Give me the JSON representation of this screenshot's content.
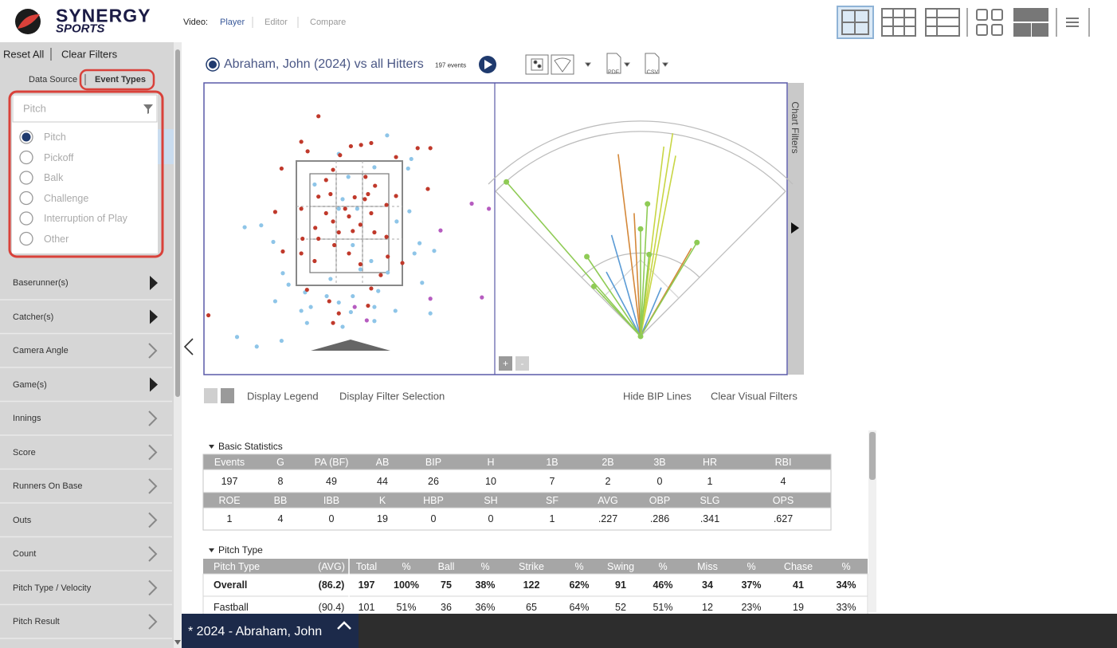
{
  "header": {
    "logo": "SYNERGY",
    "logo_sub": "SPORTS",
    "video_label": "Video:",
    "video_tabs": [
      "Player",
      "Editor",
      "Compare"
    ],
    "active_tab": 0
  },
  "sidebar": {
    "actions": [
      "Reset All",
      "Clear Filters"
    ],
    "tabs": [
      "Data Source",
      "Event Types"
    ],
    "active_tab": 1,
    "event_filter": {
      "placeholder": "Pitch",
      "options": [
        "Pitch",
        "Pickoff",
        "Balk",
        "Challenge",
        "Interruption of Play",
        "Other"
      ],
      "selected": 0
    },
    "filters": [
      {
        "label": "Baserunner(s)",
        "filled_arrow": true
      },
      {
        "label": "Catcher(s)",
        "filled_arrow": true
      },
      {
        "label": "Camera Angle",
        "filled_arrow": false
      },
      {
        "label": "Game(s)",
        "filled_arrow": true
      },
      {
        "label": "Innings",
        "filled_arrow": false
      },
      {
        "label": "Score",
        "filled_arrow": false
      },
      {
        "label": "Runners On Base",
        "filled_arrow": false
      },
      {
        "label": "Outs",
        "filled_arrow": false
      },
      {
        "label": "Count",
        "filled_arrow": false
      },
      {
        "label": "Pitch Type / Velocity",
        "filled_arrow": false
      },
      {
        "label": "Pitch Result",
        "filled_arrow": false
      }
    ]
  },
  "player": {
    "title": "Abraham, John (2024) vs all Hitters",
    "events": "197 events",
    "exports": [
      "PDF",
      "CSV"
    ]
  },
  "chart_panel": {
    "side_tab": "Chart Filters",
    "zoom": [
      "+",
      "-"
    ],
    "left_buttons": [
      "Display Legend",
      "Display Filter Selection"
    ],
    "right_buttons": [
      "Hide BIP Lines",
      "Clear Visual Filters"
    ]
  },
  "chart_data": [
    {
      "type": "scatter",
      "xlim": [
        -2.28,
        2.28
      ],
      "ylim": [
        0,
        4.56
      ],
      "series": [
        {
          "color": "#8ec5e8",
          "x": [
            0.6,
            -0.16,
            0.4,
            0.93,
            0.98,
            -0.01,
            -0.54,
            -0.1,
            0.95,
            -1.38,
            -1.64,
            -1.19,
            -0.16,
            0.13,
            0.75,
            0.06,
            1.11,
            1.34,
            1.03,
            0.35,
            0.18,
            0.61,
            -1.04,
            -0.95,
            -1.16,
            -0.69,
            0.06,
            -0.35,
            -0.16,
            -0.6,
            0.03,
            0.4,
            0.73,
            1.28,
            -0.75,
            0.4,
            -0.1,
            -0.66,
            -1.06,
            -1.45,
            -1.76,
            0.46,
            -0.29,
            1.15
          ],
          "values": [
            3.75,
            3.46,
            3.25,
            3.23,
            3.38,
            3.1,
            2.98,
            2.75,
            2.56,
            2.34,
            2.31,
            2.08,
            2.6,
            2.6,
            2.4,
            2.03,
            2.06,
            1.94,
            1.9,
            1.78,
            1.65,
            1.6,
            1.59,
            1.41,
            1.15,
            1.29,
            1.23,
            1.23,
            1.13,
            1.06,
            0.98,
            1.06,
            1.0,
            0.96,
            1.0,
            0.84,
            0.75,
            0.81,
            0.53,
            0.44,
            0.59,
            1.31,
            1.5,
            1.44
          ]
        },
        {
          "color": "#b65cc0",
          "x": [
            1.93,
            2.2,
            1.44,
            1.28,
            2.09,
            0.28,
            0.09
          ],
          "values": [
            2.68,
            2.6,
            2.26,
            1.19,
            1.21,
            0.85,
            1.06
          ]
        },
        {
          "color": "#c0392b",
          "x": [
            -0.48,
            -0.75,
            0.35,
            0.19,
            -0.65,
            -0.14,
            0.03,
            1.08,
            1.28,
            0.74,
            -1.06,
            -0.25,
            -0.36,
            0.26,
            0.41,
            1.24,
            -0.48,
            -0.29,
            0.09,
            0.25,
            0.3,
            -1.16,
            -0.75,
            -0.36,
            -0.06,
            0.35,
            0.59,
            0.74,
            -0.25,
            0,
            0.18,
            -0.53,
            -0.16,
            -0.73,
            -0.48,
            0.06,
            0.4,
            0.59,
            -0.23,
            -1.04,
            -0.75,
            -0.54,
            0,
            0.61,
            0.84,
            0.18,
            0.5,
            -0.66,
            -0.31,
            0.3,
            0.35,
            -0.16,
            -2.21,
            -0.25
          ],
          "values": [
            4.05,
            3.65,
            3.63,
            3.6,
            3.5,
            3.44,
            3.58,
            3.55,
            3.55,
            3.41,
            3.23,
            3.21,
            3.05,
            3.1,
            2.96,
            2.91,
            2.79,
            2.83,
            2.78,
            2.75,
            2.83,
            2.55,
            2.6,
            2.53,
            2.6,
            2.53,
            2.66,
            2.8,
            2.4,
            2.48,
            2.35,
            2.3,
            2.23,
            2.13,
            2.13,
            2.25,
            2.23,
            2.16,
            2.03,
            1.93,
            1.9,
            1.78,
            1.9,
            1.85,
            1.75,
            1.73,
            1.56,
            1.33,
            1.15,
            1.08,
            1.35,
            0.96,
            0.93,
            0.81
          ]
        }
      ]
    },
    {
      "type": "spray",
      "xlim": [
        -45,
        45
      ],
      "ylim": [
        0,
        400
      ],
      "series": [
        {
          "color": "#5b9bd5",
          "markers": false,
          "x": [
            -16,
            -28,
            23
          ],
          "values": [
            205,
            142,
            103
          ]
        },
        {
          "color": "#d4883a",
          "markers": false,
          "x": [
            -7,
            -3,
            30
          ],
          "values": [
            357,
            240,
            198
          ]
        },
        {
          "color": "#c8d645",
          "markers": false,
          "x": [
            9,
            11,
            7
          ],
          "values": [
            400,
            358,
            372
          ]
        },
        {
          "color": "#8fcb55",
          "markers": true,
          "x": [
            -41,
            3,
            0,
            31,
            -34,
            -43,
            6
          ],
          "values": [
            398,
            258,
            209,
            213,
            187,
            133,
            160
          ]
        }
      ]
    }
  ],
  "basic_stats": {
    "title": "Basic Statistics",
    "rows": [
      [
        "Events",
        "G",
        "PA (BF)",
        "AB",
        "BIP",
        "H",
        "1B",
        "2B",
        "3B",
        "HR",
        "RBI"
      ],
      [
        197,
        8,
        49,
        44,
        26,
        10,
        7,
        2,
        0,
        1,
        4
      ],
      [
        "ROE",
        "BB",
        "IBB",
        "K",
        "HBP",
        "SH",
        "SF",
        "AVG",
        "OBP",
        "SLG",
        "OPS"
      ],
      [
        1,
        4,
        0,
        19,
        0,
        0,
        1,
        ".227",
        ".286",
        ".341",
        ".627"
      ]
    ]
  },
  "pitch_type": {
    "title": "Pitch Type",
    "header": [
      "Pitch Type",
      "(AVG)",
      "Total",
      "%",
      "Ball",
      "%",
      "Strike",
      "%",
      "Swing",
      "%",
      "Miss",
      "%",
      "Chase",
      "%"
    ],
    "rows": [
      [
        "Overall",
        "(86.2)",
        197,
        "100%",
        75,
        "38%",
        122,
        "62%",
        91,
        "46%",
        34,
        "37%",
        41,
        "34%"
      ],
      [
        "Fastball",
        "(90.4)",
        101,
        "51%",
        36,
        "36%",
        65,
        "64%",
        52,
        "51%",
        12,
        "23%",
        19,
        "33%"
      ]
    ]
  },
  "footer": {
    "tab": "* 2024 - Abraham, John"
  }
}
